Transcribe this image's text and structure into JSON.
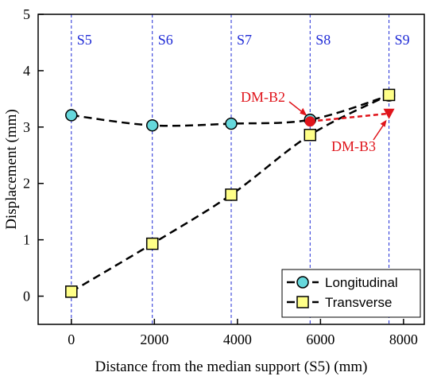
{
  "chart_data": {
    "type": "line",
    "xlabel": "Distance from the median support (S5) (mm)",
    "ylabel": "Displacement (mm)",
    "xlim": [
      -800,
      8500
    ],
    "ylim": [
      -0.5,
      5
    ],
    "xticks": [
      0,
      2000,
      4000,
      6000,
      8000
    ],
    "yticks": [
      0,
      1,
      2,
      3,
      4,
      5
    ],
    "supports": [
      {
        "label": "S5",
        "x": 0
      },
      {
        "label": "S6",
        "x": 1950
      },
      {
        "label": "S7",
        "x": 3850
      },
      {
        "label": "S8",
        "x": 5750
      },
      {
        "label": "S9",
        "x": 7650
      }
    ],
    "series": [
      {
        "name": "Longitudinal",
        "marker": "circle",
        "color": "#000000",
        "fill": "#66d8dc",
        "x": [
          0,
          1950,
          3850,
          5750,
          7650
        ],
        "y": [
          3.21,
          3.03,
          3.06,
          3.13,
          3.56
        ]
      },
      {
        "name": "Transverse",
        "marker": "square",
        "color": "#000000",
        "fill": "#ffff88",
        "x": [
          0,
          1950,
          3850,
          5750,
          7650
        ],
        "y": [
          0.08,
          0.93,
          1.8,
          2.86,
          3.57
        ]
      }
    ],
    "annotations": [
      {
        "label": "DM-B2",
        "x": 5750,
        "y": 3.1,
        "marker": "circle",
        "color": "#e0141b"
      },
      {
        "label": "DM-B3",
        "x": 7650,
        "y": 3.24,
        "marker": "triangle-down",
        "color": "#e0141b"
      }
    ],
    "legend": "bottom-right",
    "grid": false
  }
}
